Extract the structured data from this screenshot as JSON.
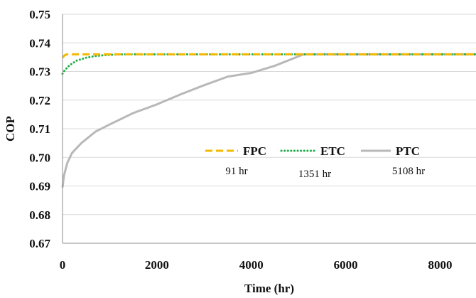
{
  "chart_data": {
    "type": "line",
    "title": "",
    "xlabel": "Time (hr)",
    "ylabel": "COP",
    "xlim": [
      0,
      8760
    ],
    "ylim": [
      0.67,
      0.75
    ],
    "x_ticks": [
      0,
      2000,
      4000,
      6000,
      8000
    ],
    "x_tick_labels": [
      "0",
      "2000",
      "4000",
      "6000",
      "8000"
    ],
    "y_ticks": [
      0.67,
      0.68,
      0.69,
      0.7,
      0.71,
      0.72,
      0.73,
      0.74,
      0.75
    ],
    "y_tick_labels": [
      "0.67",
      "0.68",
      "0.69",
      "0.70",
      "0.71",
      "0.72",
      "0.73",
      "0.74",
      "0.75"
    ],
    "grid": "horizontal",
    "legend_position": "center",
    "series": [
      {
        "name": "FPC",
        "color": "#f5b800",
        "style": "dashed",
        "note": "91 hr",
        "x": [
          0,
          40,
          91,
          200,
          1000,
          5000,
          8760
        ],
        "y": [
          0.7348,
          0.7356,
          0.736,
          0.736,
          0.736,
          0.736,
          0.736
        ]
      },
      {
        "name": "ETC",
        "color": "#1fae4b",
        "style": "dotted",
        "note": "1351 hr",
        "x": [
          0,
          50,
          150,
          300,
          500,
          700,
          900,
          1100,
          1351,
          3000,
          6000,
          8760
        ],
        "y": [
          0.7292,
          0.7305,
          0.7322,
          0.7338,
          0.7348,
          0.7354,
          0.7357,
          0.7359,
          0.736,
          0.736,
          0.736,
          0.736
        ]
      },
      {
        "name": "PTC",
        "color": "#b8b8b8",
        "style": "solid",
        "note": "5108 hr",
        "x": [
          0,
          30,
          100,
          200,
          400,
          700,
          1000,
          1500,
          2000,
          2500,
          3000,
          3500,
          4000,
          4500,
          5108,
          6000,
          8760
        ],
        "y": [
          0.6895,
          0.6935,
          0.698,
          0.7015,
          0.705,
          0.709,
          0.7115,
          0.7155,
          0.7185,
          0.722,
          0.7252,
          0.7282,
          0.7295,
          0.732,
          0.736,
          0.736,
          0.736
        ]
      }
    ]
  }
}
